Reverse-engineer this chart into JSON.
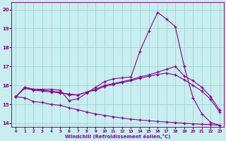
{
  "bg_color": "#c8eef0",
  "line_color": "#880088",
  "grid_color": "#99cccc",
  "xlabel": "Windchill (Refroidissement éolien,°C)",
  "xlim_min": -0.5,
  "xlim_max": 23.5,
  "ylim_min": 13.8,
  "ylim_max": 20.4,
  "yticks": [
    14,
    15,
    16,
    17,
    18,
    19,
    20
  ],
  "xticks": [
    0,
    1,
    2,
    3,
    4,
    5,
    6,
    7,
    8,
    9,
    10,
    11,
    12,
    13,
    14,
    15,
    16,
    17,
    18,
    19,
    20,
    21,
    22,
    23
  ],
  "curves": [
    [
      15.4,
      15.9,
      15.8,
      15.8,
      15.8,
      15.75,
      15.2,
      15.3,
      15.6,
      15.9,
      16.2,
      16.35,
      16.4,
      16.45,
      17.8,
      18.85,
      19.85,
      19.5,
      19.1,
      17.0,
      15.35,
      14.5,
      14.05,
      13.9
    ],
    [
      15.4,
      15.9,
      15.8,
      15.75,
      15.7,
      15.65,
      15.5,
      15.5,
      15.65,
      15.8,
      16.0,
      16.1,
      16.2,
      16.3,
      16.45,
      16.55,
      16.7,
      16.85,
      17.0,
      16.5,
      16.25,
      15.9,
      15.4,
      14.7
    ],
    [
      15.4,
      15.85,
      15.75,
      15.7,
      15.65,
      15.6,
      15.55,
      15.5,
      15.65,
      15.75,
      15.95,
      16.05,
      16.15,
      16.25,
      16.38,
      16.48,
      16.58,
      16.65,
      16.55,
      16.3,
      16.0,
      15.7,
      15.25,
      14.6
    ],
    [
      15.4,
      15.35,
      15.15,
      15.1,
      15.0,
      14.95,
      14.82,
      14.72,
      14.6,
      14.5,
      14.42,
      14.35,
      14.28,
      14.22,
      14.18,
      14.14,
      14.1,
      14.07,
      14.04,
      14.01,
      13.98,
      13.95,
      13.93,
      13.9
    ]
  ]
}
